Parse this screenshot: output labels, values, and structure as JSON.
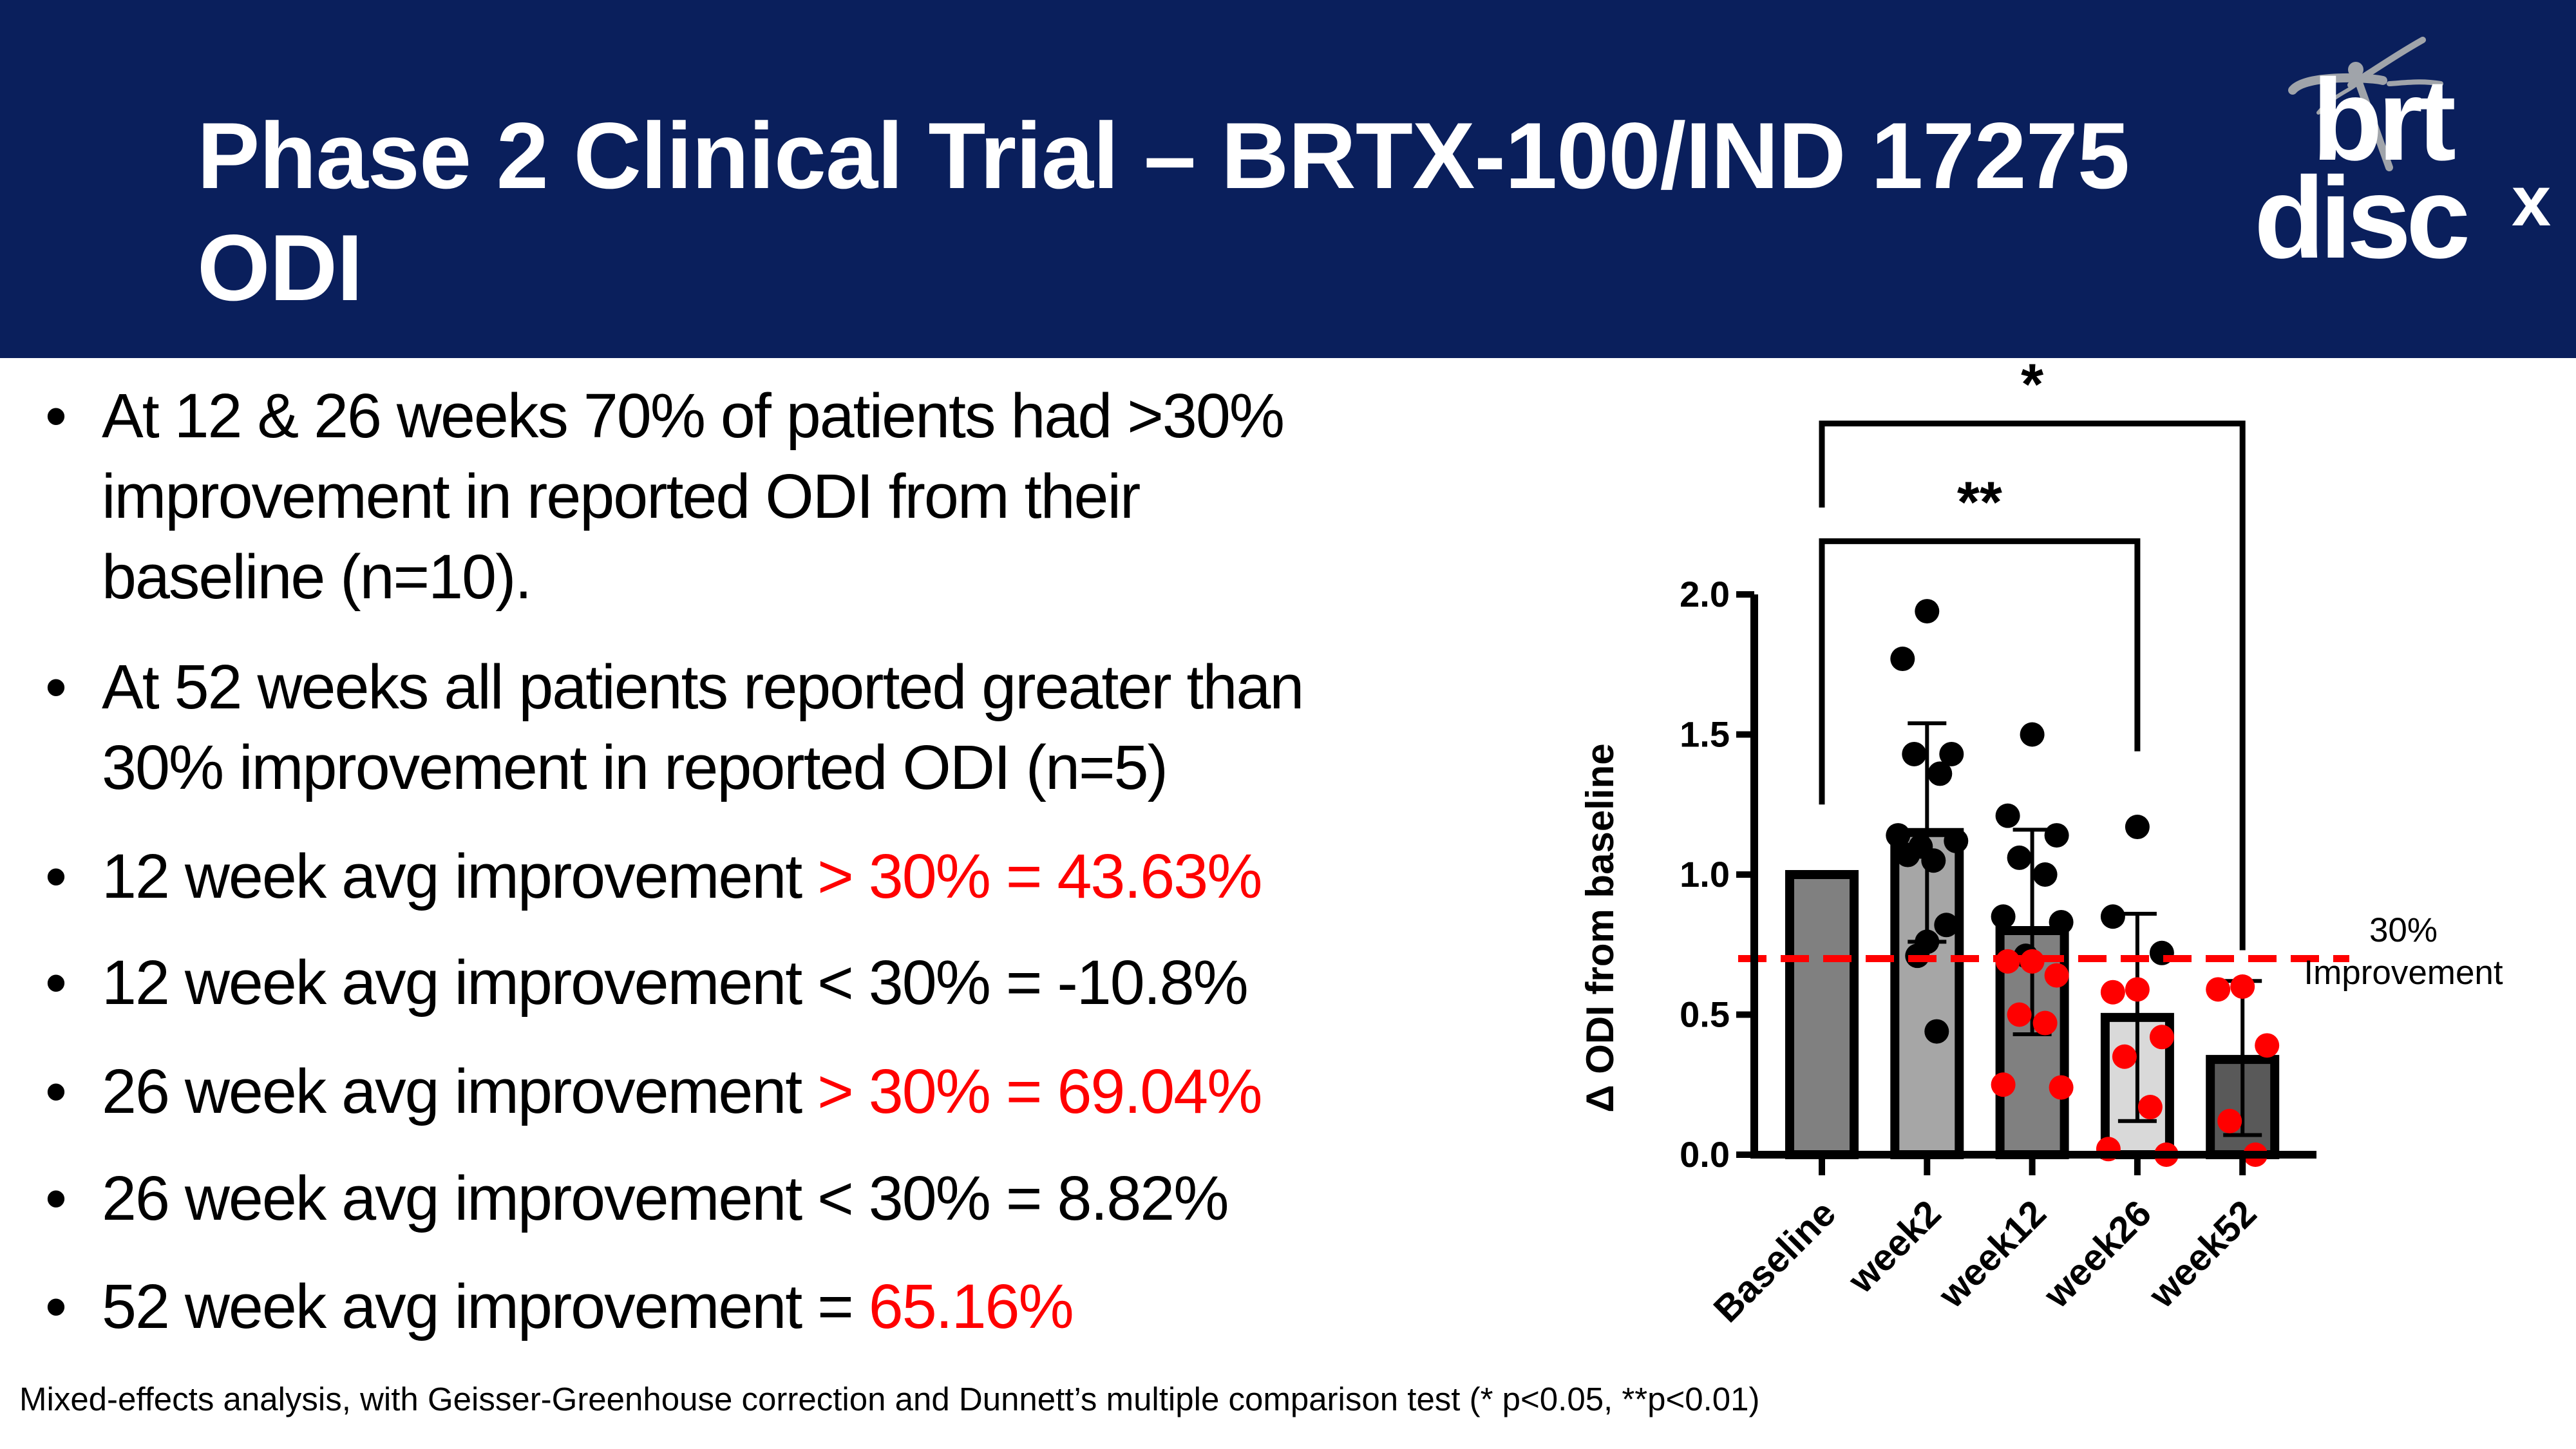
{
  "header": {
    "title_lines": [
      "Phase 2 Clinical Trial – BRTX-100/IND 17275",
      "ODI"
    ],
    "logo": {
      "top": "brt",
      "bottom": "disc",
      "superscript": "x"
    },
    "background": "#0a1f5c"
  },
  "bullets": [
    {
      "lines": [
        "At 12 & 26 weeks 70% of patients had >30%",
        "improvement in reported ODI from their",
        "baseline (n=10)."
      ]
    },
    {
      "lines": [
        "At 52 weeks all patients reported greater than",
        "30% improvement in reported ODI (n=5)"
      ]
    },
    {
      "text": "12 week avg improvement ",
      "highlight": "> 30% = 43.63%"
    },
    {
      "text": "12 week avg improvement < 30% = -10.8%"
    },
    {
      "text": "26 week avg improvement ",
      "highlight": "> 30% = 69.04%"
    },
    {
      "text": "26 week avg improvement < 30% = 8.82%"
    },
    {
      "text": "52 week avg improvement = ",
      "highlight": "65.16%"
    }
  ],
  "bullet_symbol": "•",
  "footnote": "Mixed-effects analysis, with Geisser-Greenhouse correction and Dunnett’s multiple comparison test (* p<0.05, **p<0.01)",
  "chart_data": {
    "type": "bar",
    "ylabel": "Δ ODI from baseline",
    "xlabel": "",
    "ylim": [
      0,
      2.0
    ],
    "yticks": [
      0.0,
      0.5,
      1.0,
      1.5,
      2.0
    ],
    "ytick_labels": [
      "0.0",
      "0.5",
      "1.0",
      "1.5",
      "2.0"
    ],
    "categories": [
      "Baseline",
      "week2",
      "week12",
      "week26",
      "week52"
    ],
    "values": [
      1.0,
      1.15,
      0.8,
      0.49,
      0.34
    ],
    "error_low": [
      1.0,
      0.76,
      0.43,
      0.12,
      0.07
    ],
    "error_high": [
      1.0,
      1.54,
      1.16,
      0.86,
      0.62
    ],
    "bar_colors": [
      "#808080",
      "#a6a6a6",
      "#808080",
      "#d9d9d9",
      "#595959"
    ],
    "points": [
      {
        "black": [],
        "red": []
      },
      {
        "black": [
          1.94,
          1.77,
          1.43,
          1.43,
          1.36,
          1.14,
          1.12,
          1.1,
          1.05,
          1.07,
          0.82,
          0.76,
          0.71,
          0.44
        ],
        "red": []
      },
      {
        "black": [
          1.5,
          1.21,
          1.14,
          1.06,
          1.0,
          0.85,
          0.83,
          0.71
        ],
        "red": [
          0.69,
          0.69,
          0.64,
          0.5,
          0.47,
          0.25,
          0.24
        ]
      },
      {
        "black": [
          1.17,
          0.85,
          0.72
        ],
        "red": [
          0.59,
          0.58,
          0.42,
          0.35,
          0.17,
          0.02,
          0.0
        ]
      },
      {
        "black": [],
        "red": [
          0.6,
          0.59,
          0.39,
          0.12,
          0.0
        ]
      }
    ],
    "point_colors": {
      "black": "#000000",
      "red": "#ff0000"
    },
    "threshold": {
      "value": 0.7,
      "color": "#ff0000",
      "label_lines": [
        "30%",
        "Improvement"
      ]
    },
    "significance": [
      {
        "from": "Baseline",
        "to": "week52",
        "label": "*",
        "top": 2.61,
        "left_end": 2.31,
        "right_end": 0.73
      },
      {
        "from": "Baseline",
        "to": "week26",
        "label": "**",
        "top": 2.19,
        "left_end": 1.25,
        "right_end": 1.44
      }
    ]
  }
}
